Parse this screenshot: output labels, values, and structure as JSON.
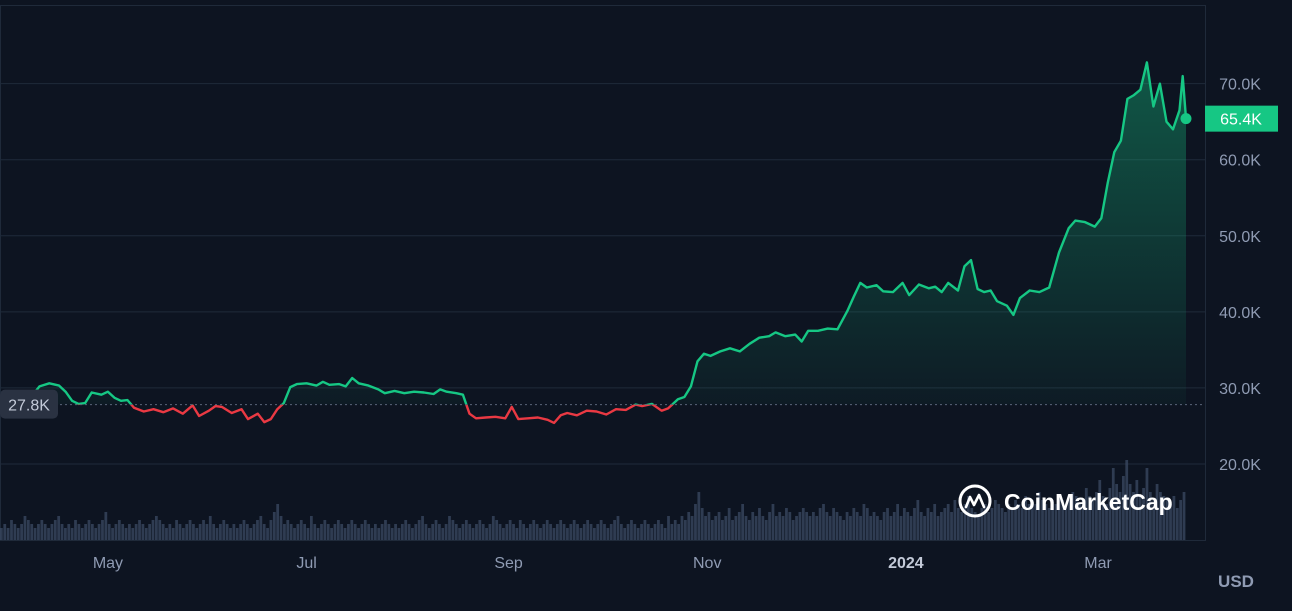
{
  "chart_data": {
    "type": "area",
    "x_axis": {
      "tick_labels": [
        "May",
        "Jul",
        "Sep",
        "Nov",
        "2024",
        "Mar"
      ],
      "tick_days": [
        27,
        88,
        150,
        211,
        272,
        331
      ],
      "bold_tick": "2024",
      "range_days": [
        0,
        358
      ]
    },
    "y_axis": {
      "tick_labels": [
        "70.0K",
        "60.0K",
        "50.0K",
        "40.0K",
        "30.0K",
        "20.0K"
      ],
      "tick_values": [
        70000,
        60000,
        50000,
        40000,
        30000,
        20000
      ],
      "range": [
        10000,
        81000
      ],
      "unit_label": "USD",
      "position": "right"
    },
    "baseline": {
      "value": 27800,
      "label": "27.8K"
    },
    "current": {
      "value": 65400,
      "label": "65.4K"
    },
    "colors": {
      "background": "#0d1421",
      "up": "#16c784",
      "down": "#ea3943",
      "grid": "#1f2a3a",
      "axis_text": "#8f9bb3",
      "volume": "#3b4a63"
    },
    "grid": true,
    "watermark": "CoinMarketCap",
    "price_series": {
      "x_unit": "days since first visible point",
      "points": [
        [
          0,
          27800
        ],
        [
          3,
          28600
        ],
        [
          6,
          30200
        ],
        [
          9,
          30600
        ],
        [
          12,
          30300
        ],
        [
          14,
          29500
        ],
        [
          16,
          28300
        ],
        [
          18,
          27900
        ],
        [
          20,
          28000
        ],
        [
          22,
          29400
        ],
        [
          25,
          29100
        ],
        [
          27,
          29500
        ],
        [
          29,
          28700
        ],
        [
          31,
          28300
        ],
        [
          33,
          28400
        ],
        [
          35,
          27400
        ],
        [
          38,
          26900
        ],
        [
          41,
          27200
        ],
        [
          44,
          26800
        ],
        [
          47,
          27300
        ],
        [
          50,
          26600
        ],
        [
          53,
          27700
        ],
        [
          55,
          26300
        ],
        [
          58,
          27000
        ],
        [
          60,
          27600
        ],
        [
          62,
          27500
        ],
        [
          65,
          26700
        ],
        [
          68,
          27200
        ],
        [
          70,
          25900
        ],
        [
          73,
          26600
        ],
        [
          75,
          25500
        ],
        [
          77,
          25900
        ],
        [
          79,
          27200
        ],
        [
          81,
          28000
        ],
        [
          83,
          30100
        ],
        [
          85,
          30500
        ],
        [
          88,
          30600
        ],
        [
          91,
          30300
        ],
        [
          93,
          30800
        ],
        [
          95,
          30400
        ],
        [
          98,
          30500
        ],
        [
          100,
          30200
        ],
        [
          102,
          31300
        ],
        [
          104,
          30600
        ],
        [
          107,
          30300
        ],
        [
          110,
          29800
        ],
        [
          112,
          29300
        ],
        [
          115,
          29600
        ],
        [
          118,
          29300
        ],
        [
          121,
          29500
        ],
        [
          124,
          29400
        ],
        [
          127,
          29200
        ],
        [
          129,
          29800
        ],
        [
          131,
          29500
        ],
        [
          134,
          29300
        ],
        [
          136,
          29100
        ],
        [
          138,
          26600
        ],
        [
          140,
          26000
        ],
        [
          143,
          26100
        ],
        [
          146,
          26200
        ],
        [
          149,
          26000
        ],
        [
          151,
          27500
        ],
        [
          153,
          25900
        ],
        [
          156,
          26000
        ],
        [
          159,
          26100
        ],
        [
          162,
          25800
        ],
        [
          164,
          25400
        ],
        [
          166,
          26400
        ],
        [
          168,
          26700
        ],
        [
          171,
          26400
        ],
        [
          174,
          27000
        ],
        [
          177,
          26900
        ],
        [
          180,
          26500
        ],
        [
          183,
          27200
        ],
        [
          186,
          27100
        ],
        [
          189,
          27800
        ],
        [
          191,
          27600
        ],
        [
          194,
          27900
        ],
        [
          197,
          27000
        ],
        [
          199,
          27300
        ],
        [
          202,
          28500
        ],
        [
          204,
          28800
        ],
        [
          206,
          30200
        ],
        [
          208,
          33500
        ],
        [
          210,
          34500
        ],
        [
          212,
          34200
        ],
        [
          215,
          34800
        ],
        [
          218,
          35200
        ],
        [
          221,
          34800
        ],
        [
          224,
          35800
        ],
        [
          227,
          36600
        ],
        [
          230,
          36800
        ],
        [
          232,
          37300
        ],
        [
          235,
          36800
        ],
        [
          238,
          37000
        ],
        [
          240,
          36100
        ],
        [
          242,
          37500
        ],
        [
          245,
          37500
        ],
        [
          248,
          37800
        ],
        [
          251,
          37700
        ],
        [
          254,
          40100
        ],
        [
          256,
          42000
        ],
        [
          258,
          43800
        ],
        [
          260,
          43200
        ],
        [
          263,
          43500
        ],
        [
          265,
          42700
        ],
        [
          268,
          42600
        ],
        [
          271,
          43800
        ],
        [
          273,
          42200
        ],
        [
          276,
          43600
        ],
        [
          279,
          43100
        ],
        [
          281,
          43300
        ],
        [
          283,
          42600
        ],
        [
          285,
          43800
        ],
        [
          288,
          42800
        ],
        [
          290,
          46000
        ],
        [
          292,
          46800
        ],
        [
          294,
          43000
        ],
        [
          296,
          42600
        ],
        [
          298,
          42800
        ],
        [
          300,
          41400
        ],
        [
          303,
          40800
        ],
        [
          305,
          39600
        ],
        [
          307,
          41800
        ],
        [
          310,
          42800
        ],
        [
          313,
          42600
        ],
        [
          316,
          43200
        ],
        [
          319,
          47800
        ],
        [
          322,
          51000
        ],
        [
          324,
          52000
        ],
        [
          327,
          51800
        ],
        [
          330,
          51200
        ],
        [
          332,
          52300
        ],
        [
          334,
          57000
        ],
        [
          336,
          61000
        ],
        [
          338,
          62500
        ],
        [
          340,
          68000
        ],
        [
          342,
          68500
        ],
        [
          344,
          69200
        ],
        [
          346,
          72800
        ],
        [
          348,
          67000
        ],
        [
          350,
          70000
        ],
        [
          352,
          65000
        ],
        [
          354,
          64000
        ],
        [
          356,
          66500
        ],
        [
          357,
          71000
        ],
        [
          358,
          65400
        ]
      ]
    },
    "volume_series": {
      "x_unit": "days since first visible point",
      "values": [
        3,
        4,
        3,
        5,
        4,
        3,
        4,
        6,
        5,
        4,
        3,
        4,
        5,
        4,
        3,
        4,
        5,
        6,
        4,
        3,
        4,
        3,
        5,
        4,
        3,
        4,
        5,
        4,
        3,
        4,
        5,
        7,
        4,
        3,
        4,
        5,
        4,
        3,
        4,
        3,
        4,
        5,
        4,
        3,
        4,
        5,
        6,
        5,
        4,
        3,
        4,
        3,
        5,
        4,
        3,
        4,
        5,
        4,
        3,
        4,
        5,
        4,
        6,
        4,
        3,
        4,
        5,
        4,
        3,
        4,
        3,
        4,
        5,
        4,
        3,
        4,
        5,
        6,
        4,
        3,
        5,
        7,
        9,
        6,
        4,
        5,
        4,
        3,
        4,
        5,
        4,
        3,
        6,
        4,
        3,
        4,
        5,
        4,
        3,
        4,
        5,
        4,
        3,
        4,
        5,
        4,
        3,
        4,
        5,
        4,
        3,
        4,
        3,
        4,
        5,
        4,
        3,
        4,
        3,
        4,
        5,
        4,
        3,
        4,
        5,
        6,
        4,
        3,
        4,
        5,
        4,
        3,
        4,
        6,
        5,
        4,
        3,
        4,
        5,
        4,
        3,
        4,
        5,
        4,
        3,
        4,
        6,
        5,
        4,
        3,
        4,
        5,
        4,
        3,
        5,
        4,
        3,
        4,
        5,
        4,
        3,
        4,
        5,
        4,
        3,
        4,
        5,
        4,
        3,
        4,
        5,
        4,
        3,
        4,
        5,
        4,
        3,
        4,
        5,
        4,
        3,
        4,
        5,
        6,
        4,
        3,
        4,
        5,
        4,
        3,
        4,
        5,
        4,
        3,
        4,
        5,
        4,
        3,
        6,
        4,
        5,
        4,
        6,
        5,
        7,
        6,
        9,
        12,
        8,
        6,
        7,
        5,
        6,
        7,
        5,
        6,
        8,
        5,
        6,
        7,
        9,
        6,
        5,
        7,
        6,
        8,
        6,
        5,
        7,
        9,
        6,
        7,
        6,
        8,
        7,
        5,
        6,
        7,
        8,
        7,
        6,
        7,
        6,
        8,
        9,
        7,
        6,
        8,
        7,
        6,
        5,
        7,
        6,
        8,
        7,
        6,
        9,
        8,
        6,
        7,
        6,
        5,
        7,
        8,
        6,
        7,
        9,
        6,
        8,
        7,
        6,
        8,
        10,
        7,
        6,
        8,
        7,
        9,
        6,
        7,
        8,
        9,
        7,
        10,
        8,
        7,
        9,
        11,
        8,
        7,
        6,
        8,
        9,
        7,
        8,
        10,
        9,
        8,
        7,
        9,
        8,
        10,
        9,
        8,
        11,
        9,
        10,
        9,
        12,
        10,
        9,
        8,
        10,
        9,
        11,
        10,
        9,
        10,
        12,
        11,
        9,
        10,
        13,
        11,
        10,
        12,
        15,
        11,
        9,
        13,
        18,
        14,
        12,
        16,
        20,
        14,
        12,
        15,
        11,
        13,
        18,
        12,
        10,
        14,
        12,
        11,
        10,
        9,
        11,
        8,
        10,
        12
      ]
    }
  }
}
